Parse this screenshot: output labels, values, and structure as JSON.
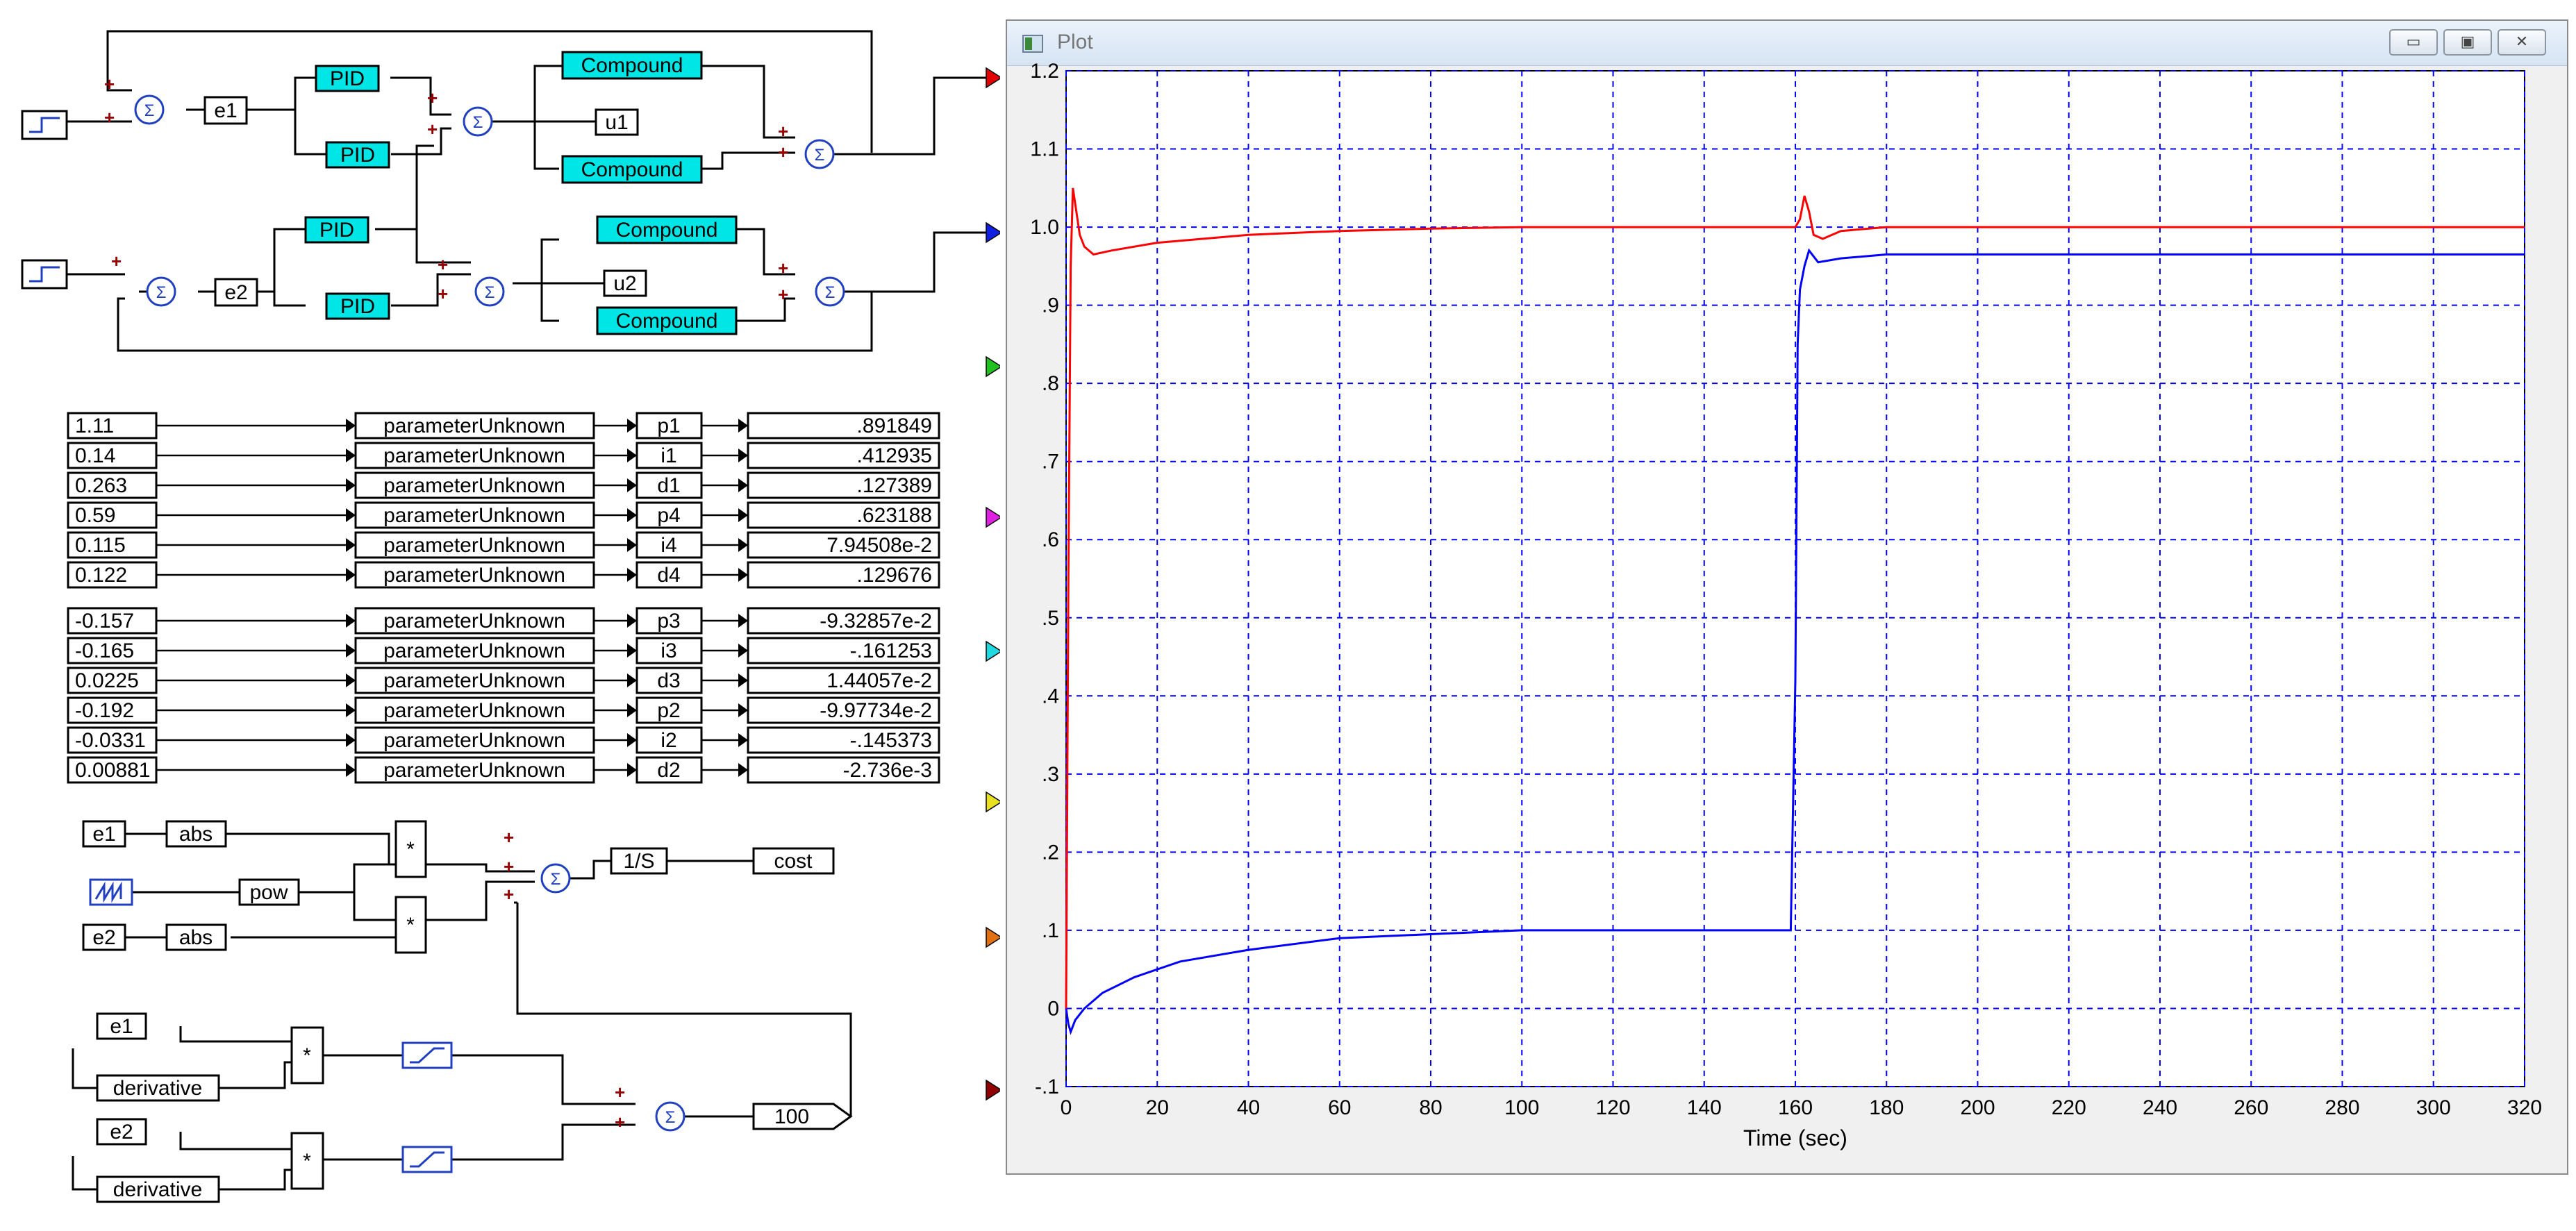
{
  "window": {
    "title": "Plot",
    "minimize_glyph": "▭",
    "maximize_glyph": "▣",
    "close_glyph": "✕"
  },
  "diagram": {
    "signals": {
      "e1": "e1",
      "e2": "e2",
      "u1": "u1",
      "u2": "u2",
      "pid": "PID",
      "compound": "Compound",
      "plus": "+"
    },
    "params_group1": [
      {
        "value": "1.11",
        "block": "parameterUnknown",
        "name": "p1",
        "result": ".891849"
      },
      {
        "value": "0.14",
        "block": "parameterUnknown",
        "name": "i1",
        "result": ".412935"
      },
      {
        "value": "0.263",
        "block": "parameterUnknown",
        "name": "d1",
        "result": ".127389"
      },
      {
        "value": "0.59",
        "block": "parameterUnknown",
        "name": "p4",
        "result": ".623188"
      },
      {
        "value": "0.115",
        "block": "parameterUnknown",
        "name": "i4",
        "result": "7.94508e-2"
      },
      {
        "value": "0.122",
        "block": "parameterUnknown",
        "name": "d4",
        "result": ".129676"
      }
    ],
    "params_group2": [
      {
        "value": "-0.157",
        "block": "parameterUnknown",
        "name": "p3",
        "result": "-9.32857e-2"
      },
      {
        "value": "-0.165",
        "block": "parameterUnknown",
        "name": "i3",
        "result": "-.161253"
      },
      {
        "value": "0.0225",
        "block": "parameterUnknown",
        "name": "d3",
        "result": "1.44057e-2"
      },
      {
        "value": "-0.192",
        "block": "parameterUnknown",
        "name": "p2",
        "result": "-9.97734e-2"
      },
      {
        "value": "-0.0331",
        "block": "parameterUnknown",
        "name": "i2",
        "result": "-.145373"
      },
      {
        "value": "0.00881",
        "block": "parameterUnknown",
        "name": "d2",
        "result": "-2.736e-3"
      }
    ],
    "cost": {
      "abs": "abs",
      "pow": "pow",
      "mult": "*",
      "integrator": "1/S",
      "cost": "cost",
      "derivative": "derivative",
      "gain": "100"
    }
  },
  "colors": {
    "block_cyan": "#00e5e5",
    "grid": "#0000ff",
    "series_red": "#ff0000",
    "series_blue": "#0000ff",
    "input_markers": [
      "#e00000",
      "#1020e0",
      "#20c020",
      "#e020e0",
      "#20d8e0",
      "#e8e020",
      "#e07010",
      "#900000"
    ]
  },
  "chart_data": {
    "type": "line",
    "xlabel": "Time (sec)",
    "xlim": [
      0,
      320
    ],
    "ylim": [
      -0.1,
      1.2
    ],
    "x_ticks": [
      "0",
      "20",
      "40",
      "60",
      "80",
      "100",
      "120",
      "140",
      "160",
      "180",
      "200",
      "220",
      "240",
      "260",
      "280",
      "300",
      "320"
    ],
    "y_ticks": [
      "-.1",
      "0",
      ".1",
      ".2",
      ".3",
      ".4",
      ".5",
      ".6",
      ".7",
      ".8",
      ".9",
      "1.0",
      "1.1",
      "1.2"
    ],
    "grid": true,
    "series": [
      {
        "color": "#ff0000",
        "x": [
          0,
          0.5,
          1,
          1.5,
          2,
          3,
          4,
          6,
          10,
          20,
          40,
          60,
          80,
          100,
          120,
          140,
          158,
          160,
          161,
          162,
          163,
          164,
          166,
          170,
          180,
          200,
          250,
          320
        ],
        "y": [
          0,
          0.55,
          0.95,
          1.05,
          1.03,
          0.99,
          0.975,
          0.965,
          0.97,
          0.98,
          0.99,
          0.995,
          0.998,
          1.0,
          1.0,
          1.0,
          1.0,
          1.0,
          1.01,
          1.04,
          1.02,
          0.99,
          0.985,
          0.995,
          1.0,
          1.0,
          1.0,
          1.0
        ]
      },
      {
        "color": "#0000ff",
        "x": [
          0,
          0.5,
          1,
          2,
          4,
          8,
          15,
          25,
          40,
          60,
          80,
          100,
          120,
          140,
          159,
          160,
          160.5,
          161,
          162,
          163,
          165,
          170,
          180,
          200,
          250,
          320
        ],
        "y": [
          0,
          -0.02,
          -0.03,
          -0.015,
          0,
          0.02,
          0.04,
          0.06,
          0.075,
          0.09,
          0.095,
          0.1,
          0.1,
          0.1,
          0.1,
          0.42,
          0.85,
          0.92,
          0.95,
          0.97,
          0.955,
          0.96,
          0.965,
          0.965,
          0.965,
          0.965
        ]
      }
    ]
  }
}
